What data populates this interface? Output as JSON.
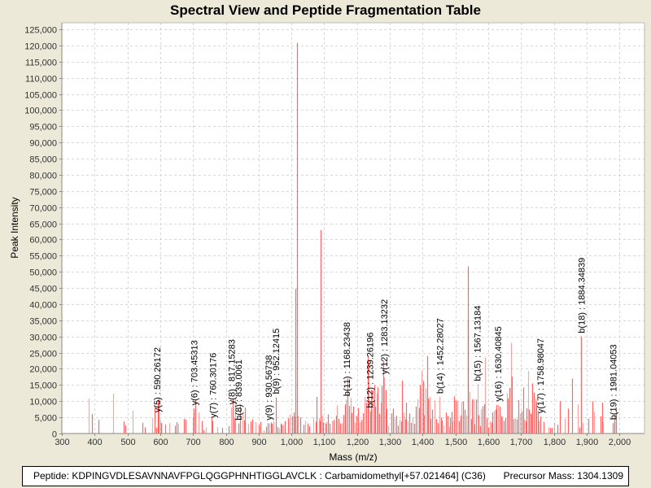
{
  "chart_data": {
    "type": "bar",
    "title": "Spectral View and Peptide Fragmentation Table",
    "xlabel": "Mass (m/z)",
    "ylabel": "Peak Intensity",
    "xlim": [
      300,
      2078
    ],
    "ylim": [
      0,
      125000
    ],
    "grid": true,
    "x_ticks": [
      "300",
      "400",
      "500",
      "600",
      "700",
      "800",
      "900",
      "1,000",
      "1,100",
      "1,200",
      "1,300",
      "1,400",
      "1,500",
      "1,600",
      "1,700",
      "1,800",
      "1,900",
      "2,000"
    ],
    "x_tick_values": [
      300,
      400,
      500,
      600,
      700,
      800,
      900,
      1000,
      1100,
      1200,
      1300,
      1400,
      1500,
      1600,
      1700,
      1800,
      1900,
      2000
    ],
    "y_ticks": [
      "0",
      "5,000",
      "10,000",
      "15,000",
      "20,000",
      "25,000",
      "30,000",
      "35,000",
      "40,000",
      "45,000",
      "50,000",
      "55,000",
      "60,000",
      "65,000",
      "70,000",
      "75,000",
      "80,000",
      "85,000",
      "90,000",
      "95,000",
      "100,000",
      "105,000",
      "110,000",
      "115,000",
      "120,000",
      "125,000"
    ],
    "y_tick_values": [
      0,
      5000,
      10000,
      15000,
      20000,
      25000,
      30000,
      35000,
      40000,
      45000,
      50000,
      55000,
      60000,
      65000,
      70000,
      75000,
      80000,
      85000,
      90000,
      95000,
      100000,
      105000,
      110000,
      115000,
      120000,
      125000
    ],
    "series_color": "#ff5555",
    "peaks": [
      [
        381,
        10800
      ],
      [
        393,
        6000
      ],
      [
        411,
        4200
      ],
      [
        457,
        12300
      ],
      [
        489,
        3700
      ],
      [
        494,
        2500
      ],
      [
        517,
        7100
      ],
      [
        545,
        3300
      ],
      [
        553,
        1900
      ],
      [
        576,
        4800
      ],
      [
        583,
        8300
      ],
      [
        587,
        1800
      ],
      [
        592,
        5500
      ],
      [
        594,
        10300
      ],
      [
        596,
        10800
      ],
      [
        600,
        4000
      ],
      [
        602,
        3200
      ],
      [
        615,
        2800
      ],
      [
        628,
        3200
      ],
      [
        645,
        2400
      ],
      [
        650,
        3500
      ],
      [
        654,
        3000
      ],
      [
        673,
        4500
      ],
      [
        678,
        4300
      ],
      [
        700,
        5100
      ],
      [
        703,
        7700
      ],
      [
        706,
        10400
      ],
      [
        716,
        6500
      ],
      [
        727,
        3800
      ],
      [
        733,
        1100
      ],
      [
        738,
        1900
      ],
      [
        757,
        5000
      ],
      [
        760,
        3800
      ],
      [
        773,
        2000
      ],
      [
        790,
        1700
      ],
      [
        808,
        2300
      ],
      [
        817,
        8000
      ],
      [
        821,
        10500
      ],
      [
        827,
        4700
      ],
      [
        829,
        11000
      ],
      [
        838,
        3100
      ],
      [
        844,
        9000
      ],
      [
        850,
        6100
      ],
      [
        855,
        4000
      ],
      [
        858,
        8000
      ],
      [
        868,
        3000
      ],
      [
        875,
        3700
      ],
      [
        880,
        4400
      ],
      [
        890,
        3500
      ],
      [
        900,
        2700
      ],
      [
        905,
        3600
      ],
      [
        915,
        1000
      ],
      [
        922,
        2100
      ],
      [
        928,
        3200
      ],
      [
        932,
        3100
      ],
      [
        937,
        3400
      ],
      [
        941,
        3000
      ],
      [
        945,
        3700
      ],
      [
        952,
        11200
      ],
      [
        957,
        2000
      ],
      [
        963,
        1600
      ],
      [
        967,
        3100
      ],
      [
        970,
        2700
      ],
      [
        976,
        2600
      ],
      [
        980,
        3800
      ],
      [
        990,
        4700
      ],
      [
        995,
        5800
      ],
      [
        1002,
        5400
      ],
      [
        1006,
        6500
      ],
      [
        1010,
        5200
      ],
      [
        1013,
        44800
      ],
      [
        1016,
        120800
      ],
      [
        1019,
        5500
      ],
      [
        1027,
        5000
      ],
      [
        1036,
        2700
      ],
      [
        1043,
        3800
      ],
      [
        1050,
        3100
      ],
      [
        1054,
        2200
      ],
      [
        1067,
        4900
      ],
      [
        1073,
        3600
      ],
      [
        1077,
        11300
      ],
      [
        1083,
        4800
      ],
      [
        1086,
        3900
      ],
      [
        1089,
        62900
      ],
      [
        1093,
        5600
      ],
      [
        1097,
        3400
      ],
      [
        1103,
        3100
      ],
      [
        1107,
        3600
      ],
      [
        1112,
        5900
      ],
      [
        1117,
        3000
      ],
      [
        1124,
        3900
      ],
      [
        1130,
        4200
      ],
      [
        1135,
        5500
      ],
      [
        1139,
        8700
      ],
      [
        1144,
        4500
      ],
      [
        1148,
        3100
      ],
      [
        1153,
        3200
      ],
      [
        1158,
        5700
      ],
      [
        1163,
        9000
      ],
      [
        1167,
        10500
      ],
      [
        1170,
        17100
      ],
      [
        1175,
        8500
      ],
      [
        1180,
        11000
      ],
      [
        1184,
        6300
      ],
      [
        1188,
        8300
      ],
      [
        1193,
        3400
      ],
      [
        1198,
        5500
      ],
      [
        1203,
        7900
      ],
      [
        1208,
        3600
      ],
      [
        1213,
        4200
      ],
      [
        1218,
        6300
      ],
      [
        1224,
        11300
      ],
      [
        1228,
        9500
      ],
      [
        1232,
        24000
      ],
      [
        1236,
        22500
      ],
      [
        1240,
        6900
      ],
      [
        1244,
        13600
      ],
      [
        1248,
        10400
      ],
      [
        1252,
        14900
      ],
      [
        1256,
        8300
      ],
      [
        1260,
        12300
      ],
      [
        1264,
        14300
      ],
      [
        1268,
        6100
      ],
      [
        1272,
        9500
      ],
      [
        1276,
        14800
      ],
      [
        1279,
        22600
      ],
      [
        1283,
        17300
      ],
      [
        1287,
        13500
      ],
      [
        1291,
        7600
      ],
      [
        1295,
        2500
      ],
      [
        1305,
        6200
      ],
      [
        1310,
        7700
      ],
      [
        1315,
        4700
      ],
      [
        1320,
        5500
      ],
      [
        1325,
        2400
      ],
      [
        1330,
        4300
      ],
      [
        1334,
        3700
      ],
      [
        1338,
        16300
      ],
      [
        1342,
        6400
      ],
      [
        1346,
        4400
      ],
      [
        1350,
        9500
      ],
      [
        1355,
        3800
      ],
      [
        1360,
        6200
      ],
      [
        1365,
        3300
      ],
      [
        1370,
        4900
      ],
      [
        1374,
        3000
      ],
      [
        1380,
        8300
      ],
      [
        1385,
        10600
      ],
      [
        1389,
        7900
      ],
      [
        1393,
        15000
      ],
      [
        1397,
        19300
      ],
      [
        1401,
        16200
      ],
      [
        1405,
        5700
      ],
      [
        1409,
        14000
      ],
      [
        1413,
        24000
      ],
      [
        1417,
        10800
      ],
      [
        1421,
        11300
      ],
      [
        1425,
        4600
      ],
      [
        1430,
        7400
      ],
      [
        1436,
        10200
      ],
      [
        1442,
        4500
      ],
      [
        1447,
        3200
      ],
      [
        1452,
        11300
      ],
      [
        1456,
        5000
      ],
      [
        1460,
        4000
      ],
      [
        1465,
        2600
      ],
      [
        1470,
        6500
      ],
      [
        1475,
        5500
      ],
      [
        1480,
        2100
      ],
      [
        1483,
        4900
      ],
      [
        1488,
        6700
      ],
      [
        1492,
        3800
      ],
      [
        1497,
        11500
      ],
      [
        1501,
        10200
      ],
      [
        1505,
        10100
      ],
      [
        1510,
        3800
      ],
      [
        1515,
        5600
      ],
      [
        1519,
        9800
      ],
      [
        1524,
        9900
      ],
      [
        1528,
        7400
      ],
      [
        1533,
        5600
      ],
      [
        1537,
        51700
      ],
      [
        1539,
        35000
      ],
      [
        1543,
        12800
      ],
      [
        1547,
        4500
      ],
      [
        1551,
        10600
      ],
      [
        1555,
        10600
      ],
      [
        1559,
        2900
      ],
      [
        1564,
        10500
      ],
      [
        1567,
        15200
      ],
      [
        1571,
        5700
      ],
      [
        1575,
        2300
      ],
      [
        1579,
        7500
      ],
      [
        1583,
        8400
      ],
      [
        1587,
        9000
      ],
      [
        1591,
        23500
      ],
      [
        1595,
        4700
      ],
      [
        1600,
        1900
      ],
      [
        1604,
        3800
      ],
      [
        1609,
        3400
      ],
      [
        1613,
        6500
      ],
      [
        1618,
        7000
      ],
      [
        1622,
        7400
      ],
      [
        1625,
        8800
      ],
      [
        1630,
        8900
      ],
      [
        1634,
        8300
      ],
      [
        1639,
        5400
      ],
      [
        1643,
        4800
      ],
      [
        1648,
        3900
      ],
      [
        1652,
        4800
      ],
      [
        1657,
        12500
      ],
      [
        1661,
        10800
      ],
      [
        1666,
        14100
      ],
      [
        1669,
        28000
      ],
      [
        1673,
        17600
      ],
      [
        1678,
        4500
      ],
      [
        1683,
        4700
      ],
      [
        1688,
        4400
      ],
      [
        1692,
        10300
      ],
      [
        1697,
        6100
      ],
      [
        1702,
        6900
      ],
      [
        1706,
        14200
      ],
      [
        1710,
        4300
      ],
      [
        1715,
        3800
      ],
      [
        1718,
        7800
      ],
      [
        1721,
        19300
      ],
      [
        1725,
        7400
      ],
      [
        1729,
        6200
      ],
      [
        1732,
        5900
      ],
      [
        1735,
        15500
      ],
      [
        1739,
        12600
      ],
      [
        1743,
        10700
      ],
      [
        1746,
        9700
      ],
      [
        1751,
        7000
      ],
      [
        1755,
        4000
      ],
      [
        1759,
        5200
      ],
      [
        1770,
        3600
      ],
      [
        1784,
        1900
      ],
      [
        1789,
        1700
      ],
      [
        1795,
        1700
      ],
      [
        1802,
        3400
      ],
      [
        1812,
        2700
      ],
      [
        1818,
        10000
      ],
      [
        1833,
        4600
      ],
      [
        1843,
        7700
      ],
      [
        1856,
        17000
      ],
      [
        1873,
        9000
      ],
      [
        1879,
        1800
      ],
      [
        1884,
        30000
      ],
      [
        1888,
        3300
      ],
      [
        1906,
        4600
      ],
      [
        1918,
        10000
      ],
      [
        1922,
        6600
      ],
      [
        1943,
        5300
      ],
      [
        1947,
        9600
      ],
      [
        1950,
        3400
      ],
      [
        1981,
        3200
      ],
      [
        1984,
        4000
      ],
      [
        1986,
        5800
      ],
      [
        1989,
        7300
      ]
    ],
    "annotations": [
      {
        "label": "y(5) : 590.26172",
        "mass": 590.26172
      },
      {
        "label": "y(6) : 703.45313",
        "mass": 703.45313
      },
      {
        "label": "y(7) : 760.30176",
        "mass": 760.30176
      },
      {
        "label": "y(8) : 817.15283",
        "mass": 817.15283
      },
      {
        "label": "b(8) : 839.0061",
        "mass": 839.0061
      },
      {
        "label": "y(9) : 930.56738",
        "mass": 930.56738
      },
      {
        "label": "b(9) : 952.12415",
        "mass": 952.12415
      },
      {
        "label": "b(11) : 1168.23438",
        "mass": 1168.23438
      },
      {
        "label": "b(12) : 1239.26196",
        "mass": 1239.26196
      },
      {
        "label": "y(12) : 1283.13232",
        "mass": 1283.13232
      },
      {
        "label": "b(14) : 1452.28027",
        "mass": 1452.28027
      },
      {
        "label": "b(15) : 1567.13184",
        "mass": 1567.13184
      },
      {
        "label": "y(16) : 1630.40845",
        "mass": 1630.40845
      },
      {
        "label": "y(17) : 1758.98047",
        "mass": 1758.98047
      },
      {
        "label": "b(18) : 1884.34839",
        "mass": 1884.34839
      },
      {
        "label": "b(19) : 1981.04053",
        "mass": 1981.04053
      }
    ]
  },
  "legend": {
    "peptide": "Peptide: KDPINGVDLESAVNNAVFPGLQGGPHNHTIGGLAVCLK : Carbamidomethyl[+57.021464] (C36)",
    "precursor": "Precursor Mass: 1304.1309"
  }
}
